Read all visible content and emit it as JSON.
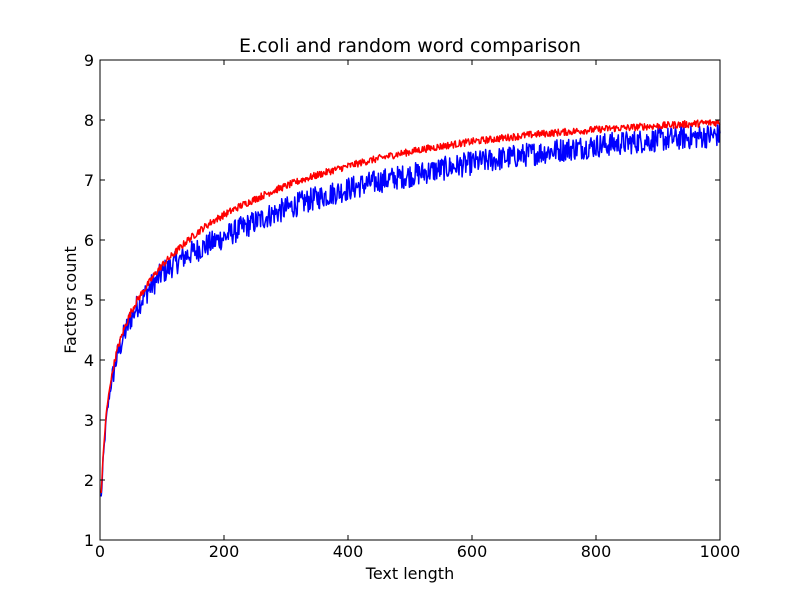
{
  "chart_data": {
    "type": "line",
    "title": "E.coli and random word comparison",
    "xlabel": "Text length",
    "ylabel": "Factors count",
    "xlim": [
      0,
      1000
    ],
    "ylim": [
      1,
      9
    ],
    "x_ticks": [
      0,
      200,
      400,
      600,
      800,
      1000
    ],
    "y_ticks": [
      1,
      2,
      3,
      4,
      5,
      6,
      7,
      8,
      9
    ],
    "grid": false,
    "legend": "none",
    "series": [
      {
        "color": "#0000ff",
        "x": [
          2,
          5,
          10,
          15,
          20,
          25,
          30,
          40,
          50,
          60,
          70,
          80,
          90,
          100,
          120,
          140,
          160,
          180,
          200,
          225,
          250,
          275,
          300,
          325,
          350,
          375,
          400,
          425,
          450,
          475,
          500,
          525,
          550,
          575,
          600,
          625,
          650,
          675,
          700,
          725,
          750,
          775,
          800,
          825,
          850,
          875,
          900,
          925,
          950,
          975,
          1000
        ],
        "values": [
          1.7,
          2.3,
          3.0,
          3.4,
          3.7,
          3.95,
          4.15,
          4.45,
          4.7,
          4.9,
          5.05,
          5.2,
          5.32,
          5.45,
          5.6,
          5.75,
          5.85,
          5.95,
          6.05,
          6.18,
          6.3,
          6.42,
          6.52,
          6.62,
          6.7,
          6.78,
          6.85,
          6.92,
          6.98,
          7.03,
          7.08,
          7.13,
          7.18,
          7.23,
          7.28,
          7.32,
          7.36,
          7.4,
          7.44,
          7.48,
          7.51,
          7.54,
          7.57,
          7.6,
          7.62,
          7.65,
          7.67,
          7.69,
          7.71,
          7.73,
          7.75
        ],
        "noise": 0.2
      },
      {
        "color": "#ff0000",
        "x": [
          2,
          5,
          10,
          15,
          20,
          25,
          30,
          40,
          50,
          60,
          70,
          80,
          90,
          100,
          120,
          140,
          160,
          180,
          200,
          225,
          250,
          275,
          300,
          325,
          350,
          375,
          400,
          425,
          450,
          475,
          500,
          525,
          550,
          575,
          600,
          625,
          650,
          675,
          700,
          725,
          750,
          775,
          800,
          825,
          850,
          875,
          900,
          925,
          950,
          975,
          1000
        ],
        "values": [
          1.8,
          2.4,
          3.1,
          3.5,
          3.8,
          4.05,
          4.25,
          4.55,
          4.8,
          5.0,
          5.15,
          5.3,
          5.45,
          5.58,
          5.78,
          5.98,
          6.15,
          6.3,
          6.42,
          6.56,
          6.68,
          6.8,
          6.9,
          7.0,
          7.08,
          7.16,
          7.23,
          7.3,
          7.36,
          7.42,
          7.47,
          7.52,
          7.56,
          7.6,
          7.64,
          7.67,
          7.7,
          7.73,
          7.76,
          7.78,
          7.8,
          7.82,
          7.84,
          7.86,
          7.87,
          7.89,
          7.9,
          7.92,
          7.93,
          7.95,
          7.96
        ],
        "noise": 0.06
      }
    ]
  }
}
